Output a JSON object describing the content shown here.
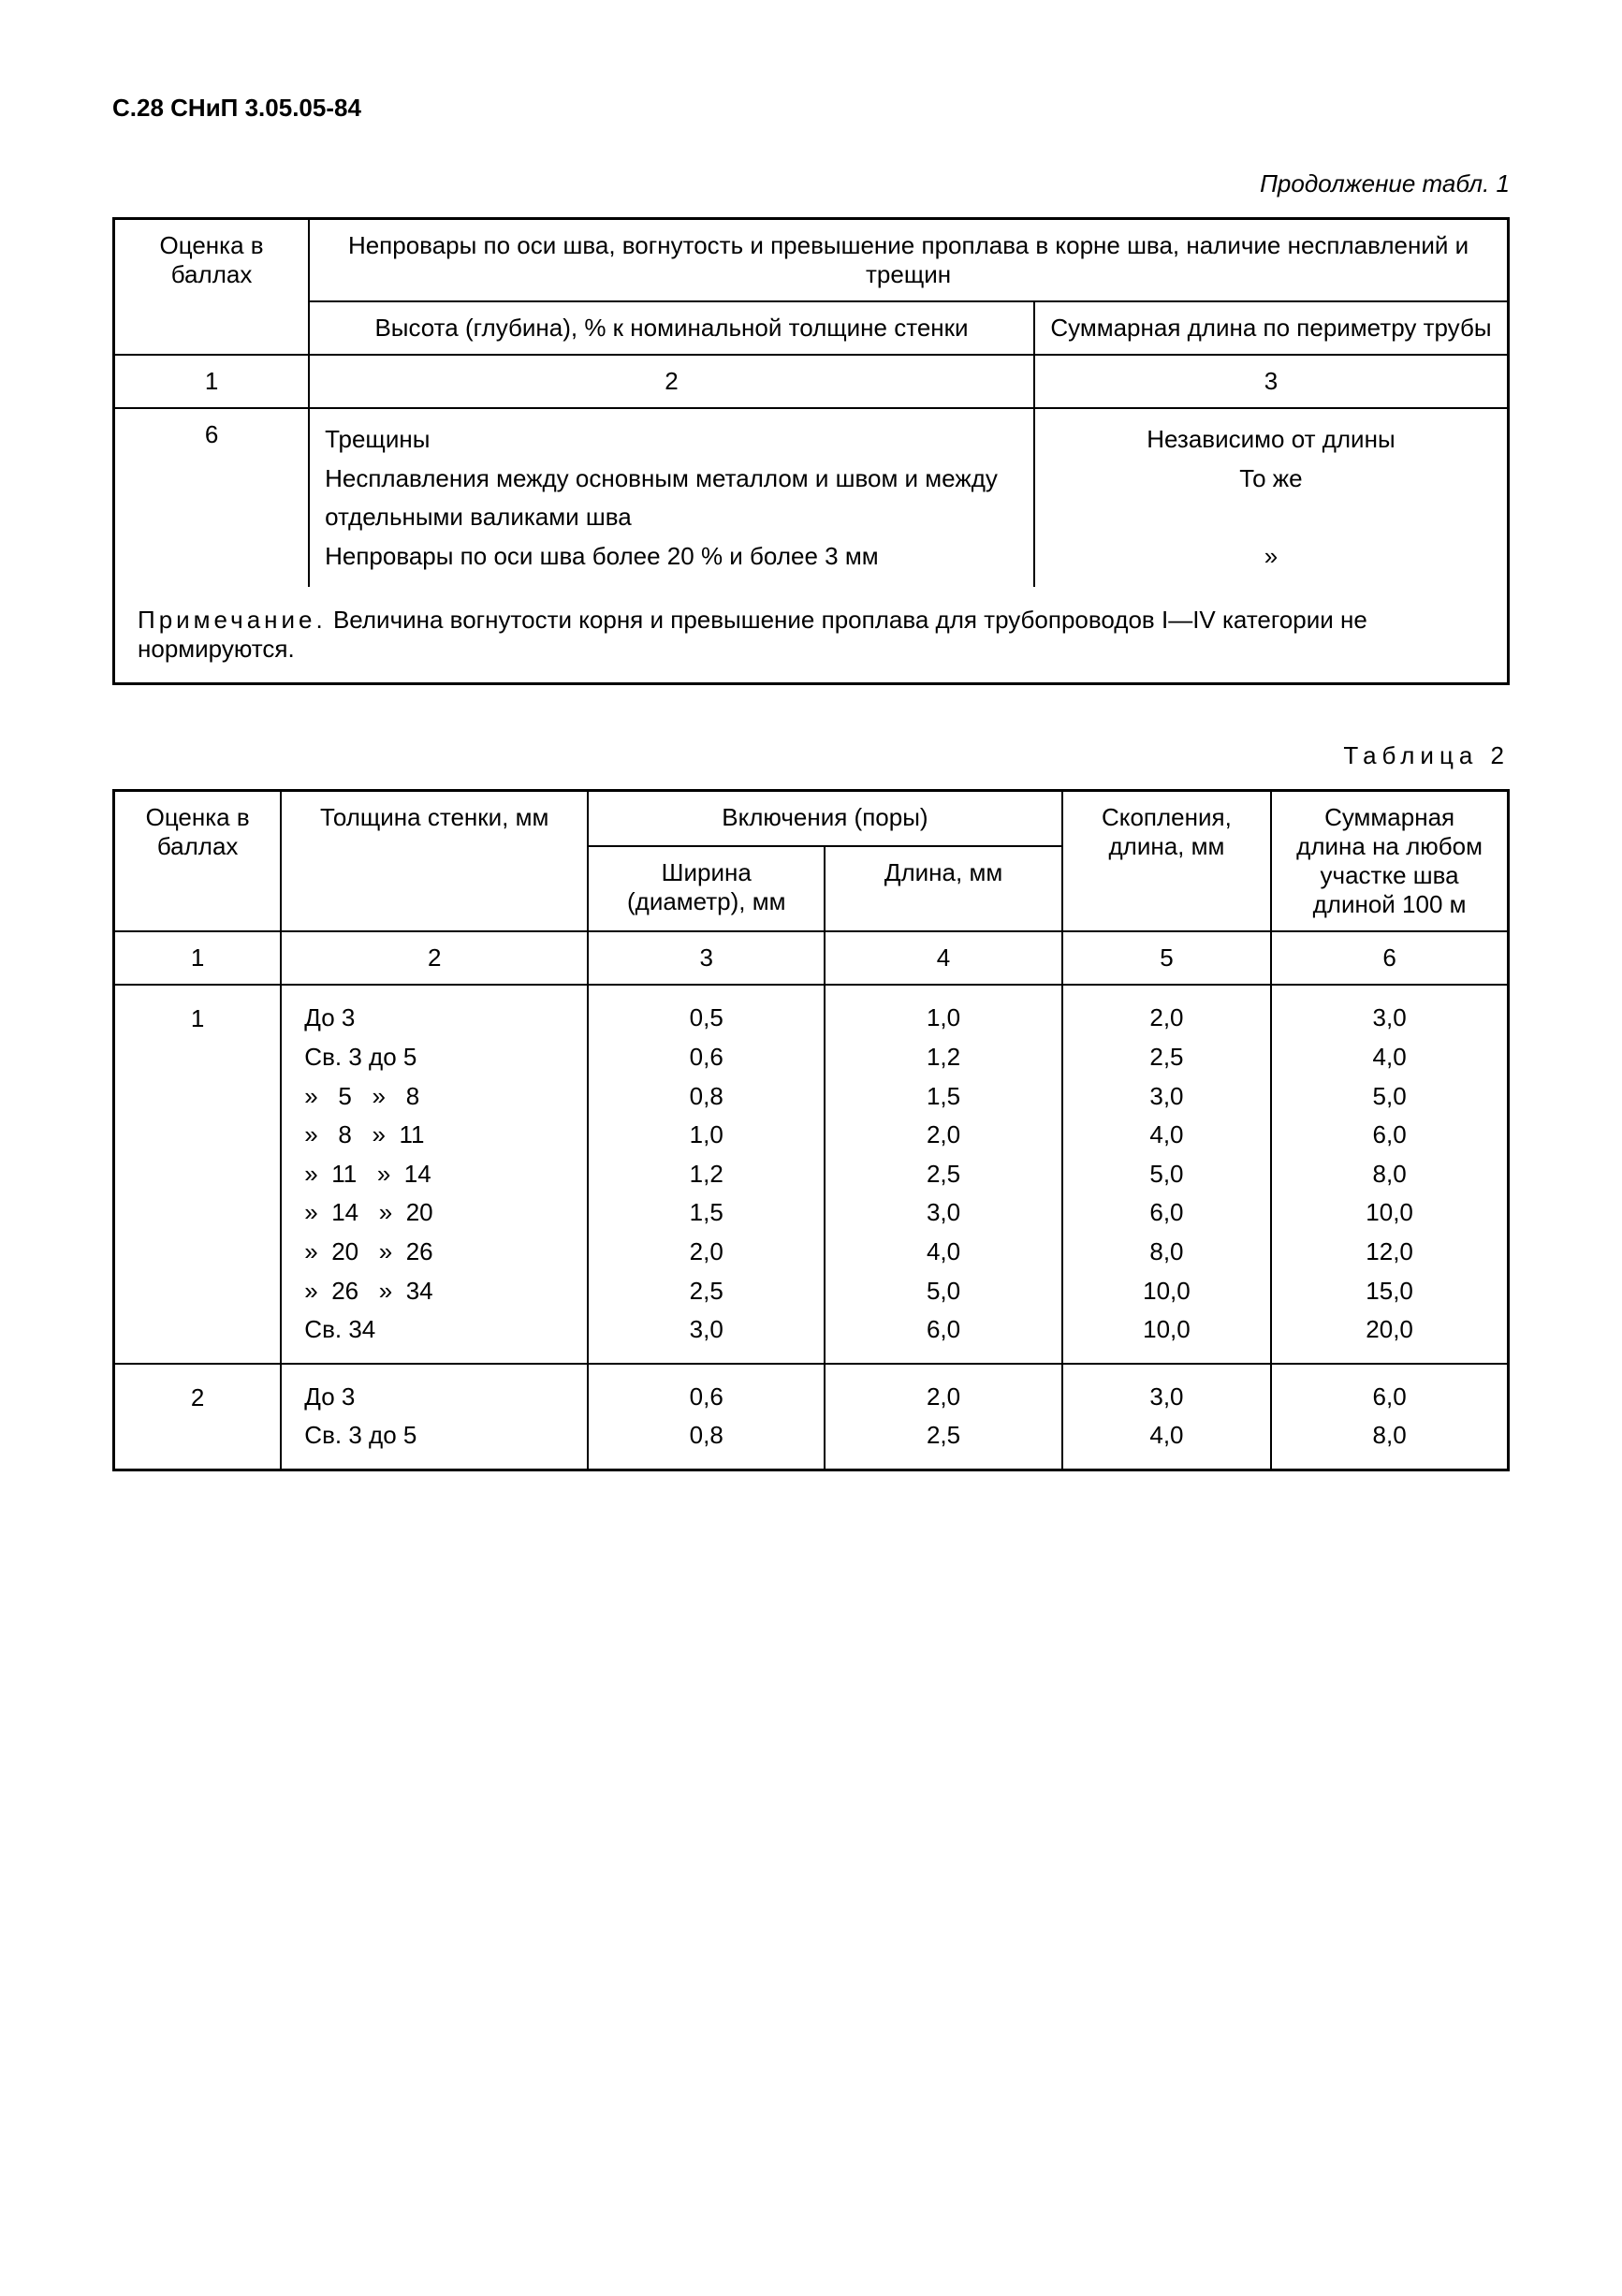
{
  "header": "С.28 СНиП 3.05.05-84",
  "table1": {
    "caption": "Продолжение табл. 1",
    "head": {
      "col1": "Оценка в баллах",
      "group": "Непровары по оси шва, вогнутость и превышение проплава в корне шва, наличие несплавлений и трещин",
      "sub2": "Высота (глубина), % к номинальной толщине стенки",
      "sub3": "Суммарная длина по периметру трубы"
    },
    "nums": {
      "c1": "1",
      "c2": "2",
      "c3": "3"
    },
    "row": {
      "score": "6",
      "col2_l1": "Трещины",
      "col2_l2": "Несплавления между основным металлом и швом и между отдельными валиками шва",
      "col2_l3": "Непровары по оси шва более 20 % и более 3 мм",
      "col3_l1": "Независимо от длины",
      "col3_l2": "То же",
      "col3_l3": "»"
    },
    "note_label": "Примечание.",
    "note_text": " Величина вогнутости корня и превышение проплава для трубопроводов I—IV категории не нормируются."
  },
  "table2": {
    "caption": "Таблица 2",
    "head": {
      "c1": "Оценка в баллах",
      "c2": "Толщина стенки, мм",
      "group3": "Включения (поры)",
      "c3": "Ширина (диаметр), мм",
      "c4": "Длина, мм",
      "c5": "Скопления, длина, мм",
      "c6": "Суммарная длина на любом участке шва длиной 100 м"
    },
    "nums": {
      "c1": "1",
      "c2": "2",
      "c3": "3",
      "c4": "4",
      "c5": "5",
      "c6": "6"
    },
    "rows": [
      {
        "score": "1",
        "thick": [
          "До 3",
          "Св. 3 до 5",
          "»   5   »   8",
          "»   8   »  11",
          "»  11   »  14",
          "»  14   »  20",
          "»  20   »  26",
          "»  26   »  34",
          "Св. 34"
        ],
        "c3": [
          "0,5",
          "0,6",
          "0,8",
          "1,0",
          "1,2",
          "1,5",
          "2,0",
          "2,5",
          "3,0"
        ],
        "c4": [
          "1,0",
          "1,2",
          "1,5",
          "2,0",
          "2,5",
          "3,0",
          "4,0",
          "5,0",
          "6,0"
        ],
        "c5": [
          "2,0",
          "2,5",
          "3,0",
          "4,0",
          "5,0",
          "6,0",
          "8,0",
          "10,0",
          "10,0"
        ],
        "c6": [
          "3,0",
          "4,0",
          "5,0",
          "6,0",
          "8,0",
          "10,0",
          "12,0",
          "15,0",
          "20,0"
        ]
      },
      {
        "score": "2",
        "thick": [
          "До 3",
          "Св. 3 до 5"
        ],
        "c3": [
          "0,6",
          "0,8"
        ],
        "c4": [
          "2,0",
          "2,5"
        ],
        "c5": [
          "3,0",
          "4,0"
        ],
        "c6": [
          "6,0",
          "8,0"
        ]
      }
    ]
  }
}
